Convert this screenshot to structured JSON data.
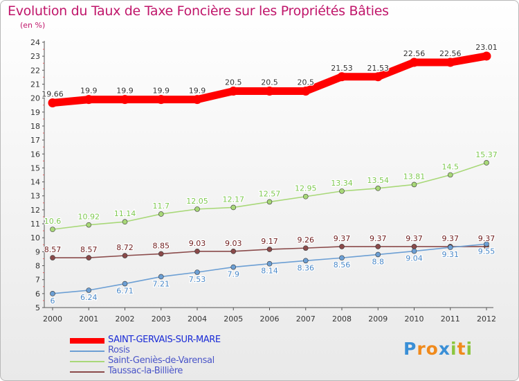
{
  "title": "Evolution du Taux de Taxe Foncière sur les Propriétés Bâties",
  "subtitle": "(en %)",
  "logo": {
    "letters": [
      "P",
      "r",
      "o",
      "x",
      "i",
      "t",
      "i"
    ],
    "colors": [
      "#3a8fd6",
      "#f08a1c",
      "#f08a1c",
      "#3a8fd6",
      "#8cc63f",
      "#f08a1c",
      "#8cc63f"
    ]
  },
  "chart_data": {
    "type": "line",
    "title": "Evolution du Taux de Taxe Foncière sur les Propriétés Bâties",
    "ylabel": "(en %)",
    "x": [
      "2000",
      "2001",
      "2002",
      "2003",
      "2004",
      "2005",
      "2006",
      "2007",
      "2008",
      "2009",
      "2010",
      "2011",
      "2012"
    ],
    "ylim": [
      5,
      24
    ],
    "yticks": [
      5,
      6,
      7,
      8,
      9,
      10,
      11,
      12,
      13,
      14,
      15,
      16,
      17,
      18,
      19,
      20,
      21,
      22,
      23,
      24
    ],
    "grid": false,
    "legend_position": "bottom",
    "series": [
      {
        "name": "SAINT-GERVAIS-SUR-MARE",
        "color": "#ff0000",
        "label_color": "#ffffff",
        "values": [
          19.66,
          19.9,
          19.9,
          19.9,
          19.9,
          20.5,
          20.5,
          20.5,
          21.53,
          21.53,
          22.56,
          22.56,
          23.01
        ],
        "labels": [
          "19.66",
          "19.9",
          "19.9",
          "19.9",
          "19.9",
          "20.5",
          "20.5",
          "20.5",
          "21.53",
          "21.53",
          "22.56",
          "22.56",
          "23.01"
        ]
      },
      {
        "name": "Rosis",
        "color": "#6c9fd4",
        "label_color": "#4a88c8",
        "values": [
          6,
          6.24,
          6.71,
          7.21,
          7.53,
          7.9,
          8.14,
          8.36,
          8.56,
          8.8,
          9.04,
          9.31,
          9.55
        ],
        "labels": [
          "6",
          "6.24",
          "6.71",
          "7.21",
          "7.53",
          "7.9",
          "8.14",
          "8.36",
          "8.56",
          "8.8",
          "9.04",
          "9.31",
          "9.55"
        ]
      },
      {
        "name": "Saint-Geniès-de-Varensal",
        "color": "#a8d878",
        "label_color": "#7ec850",
        "values": [
          10.6,
          10.92,
          11.14,
          11.7,
          12.05,
          12.17,
          12.57,
          12.95,
          13.34,
          13.54,
          13.81,
          14.5,
          15.37
        ],
        "labels": [
          "10.6",
          "10.92",
          "11.14",
          "11.7",
          "12.05",
          "12.17",
          "12.57",
          "12.95",
          "13.34",
          "13.54",
          "13.81",
          "14.5",
          "15.37"
        ]
      },
      {
        "name": "Taussac-la-Billière",
        "color": "#8a4a4a",
        "label_color": "#6e1c1c",
        "values": [
          8.57,
          8.57,
          8.72,
          8.85,
          9.03,
          9.03,
          9.17,
          9.26,
          9.37,
          9.37,
          9.37,
          9.37,
          9.37
        ],
        "labels": [
          "8.57",
          "8.57",
          "8.72",
          "8.85",
          "9.03",
          "9.03",
          "9.17",
          "9.26",
          "9.37",
          "9.37",
          "9.37",
          "9.37",
          "9.37"
        ]
      }
    ]
  }
}
